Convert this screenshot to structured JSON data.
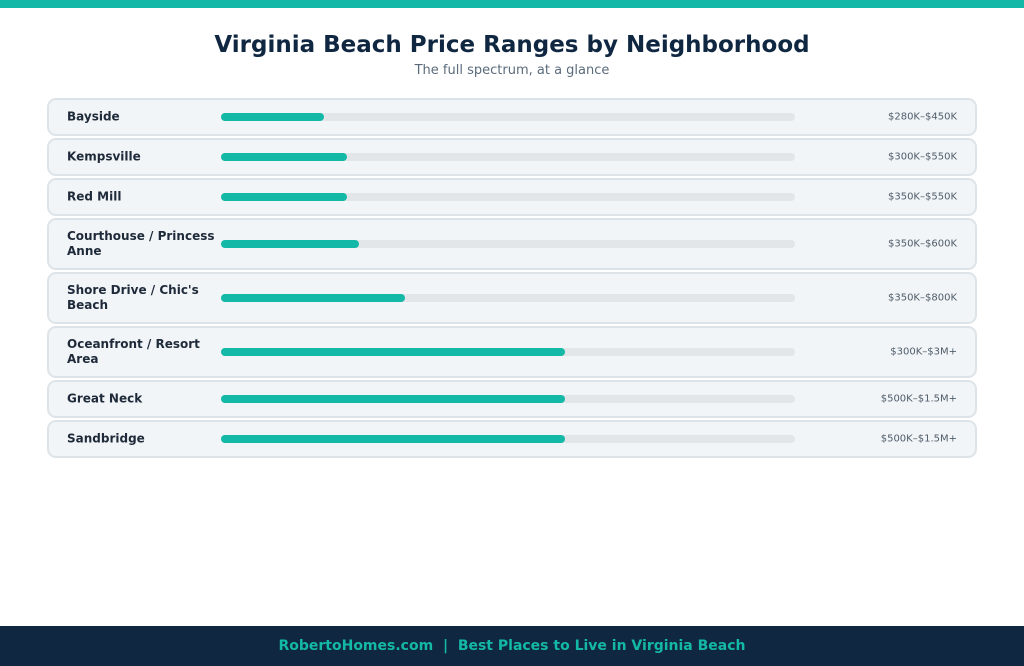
{
  "colors": {
    "accent": "#14b8a6",
    "navy": "#0f2740",
    "track": "#e2e6e8",
    "row_bg": "#f2f5f7"
  },
  "header": {
    "title": "Virginia Beach Price Ranges by Neighborhood",
    "subtitle": "The full spectrum, at a glance"
  },
  "footer": {
    "site": "RobertoHomes.com",
    "separator": "|",
    "tagline": "Best Places to Live in Virginia Beach"
  },
  "chart_data": {
    "type": "bar",
    "title": "Virginia Beach Price Ranges by Neighborhood",
    "subtitle": "The full spectrum, at a glance",
    "categories": [
      "Bayside",
      "Kempsville",
      "Red Mill",
      "Courthouse / Princess Anne",
      "Shore Drive / Chic's Beach",
      "Oceanfront / Resort Area",
      "Great Neck",
      "Sandbridge"
    ],
    "range_labels": [
      "$280K–$450K",
      "$300K–$550K",
      "$350K–$550K",
      "$350K–$600K",
      "$350K–$800K",
      "$300K–$3M+",
      "$500K–$1.5M+",
      "$500K–$1.5M+"
    ],
    "values": [
      0.18,
      0.22,
      0.22,
      0.24,
      0.32,
      0.6,
      0.6,
      0.6
    ]
  }
}
